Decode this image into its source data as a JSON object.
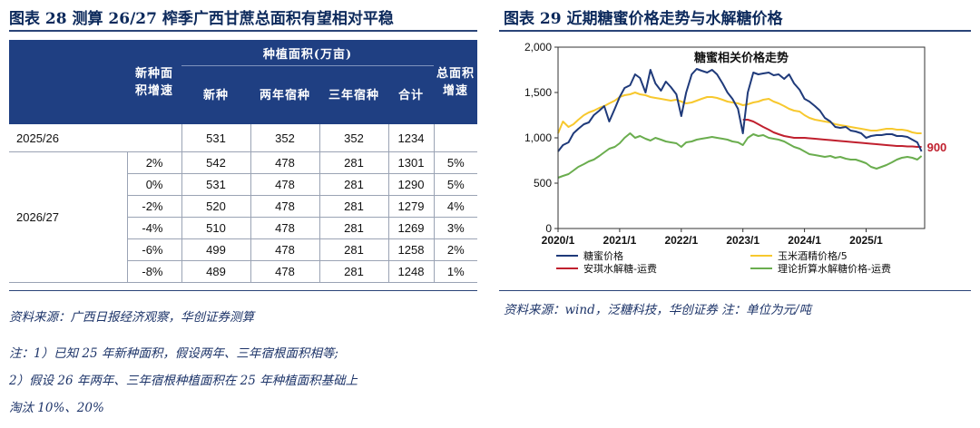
{
  "left_figure": {
    "title": "图表 28   测算 26/27 榨季广西甘蔗总面积有望相对平稳",
    "header_group": "种植面积(万亩)",
    "col_growth_lines": [
      "新种面",
      "积增速"
    ],
    "col_new": "新种",
    "col_two_year": "两年宿种",
    "col_three_year": "三年宿种",
    "col_total": "合计",
    "col_total_growth_lines": [
      "总面积",
      "增速"
    ],
    "base_row": {
      "label": "2025/26",
      "new": "531",
      "two": "352",
      "three": "352",
      "total": "1234",
      "growth": ""
    },
    "group_label": "2026/27",
    "rows": [
      {
        "g": "2%",
        "new": "542",
        "two": "478",
        "three": "281",
        "total": "1301",
        "tg": "5%"
      },
      {
        "g": "0%",
        "new": "531",
        "two": "478",
        "three": "281",
        "total": "1290",
        "tg": "5%"
      },
      {
        "g": "-2%",
        "new": "520",
        "two": "478",
        "three": "281",
        "total": "1279",
        "tg": "4%"
      },
      {
        "g": "-4%",
        "new": "510",
        "two": "478",
        "three": "281",
        "total": "1269",
        "tg": "3%"
      },
      {
        "g": "-6%",
        "new": "499",
        "two": "478",
        "three": "281",
        "total": "1258",
        "tg": "2%"
      },
      {
        "g": "-8%",
        "new": "489",
        "two": "478",
        "three": "281",
        "total": "1248",
        "tg": "1%"
      }
    ],
    "source": "资料来源：广西日报经济观察，华创证券测算",
    "notes": [
      "注：1）已知 25 年新种面积，假设两年、三年宿根面积相等;",
      "2）假设 26 年两年、三年宿根种植面积在 25 年种植面积基础上",
      "淘汰 10%、20%"
    ]
  },
  "right_figure": {
    "title": "图表 29   近期糖蜜价格走势与水解糖价格",
    "source": "资料来源：wind，泛糖科技，华创证券 注：单位为元/吨"
  },
  "chart_data": {
    "type": "line",
    "title": "糖蜜相关价格走势",
    "ylim": [
      0,
      2000
    ],
    "yticks": [
      "0",
      "500",
      "1,000",
      "1,500",
      "2,000"
    ],
    "xticks": [
      "2020/1",
      "2021/1",
      "2022/1",
      "2023/1",
      "2024/1",
      "2025/1"
    ],
    "xrange": [
      2020.0,
      2025.95
    ],
    "annotation": "900",
    "colors": {
      "molasses": "#1f3a7a",
      "corn": "#f7c82e",
      "angel": "#c0202e",
      "theory": "#6aad4e"
    },
    "series": [
      {
        "name": "糖蜜价格",
        "key": "molasses",
        "x": [
          2020.0,
          2020.08,
          2020.17,
          2020.25,
          2020.33,
          2020.42,
          2020.5,
          2020.58,
          2020.67,
          2020.75,
          2020.83,
          2020.92,
          2021.0,
          2021.08,
          2021.17,
          2021.25,
          2021.33,
          2021.42,
          2021.5,
          2021.58,
          2021.67,
          2021.75,
          2021.83,
          2021.92,
          2022.0,
          2022.08,
          2022.17,
          2022.25,
          2022.33,
          2022.42,
          2022.5,
          2022.58,
          2022.67,
          2022.75,
          2022.83,
          2022.92,
          2023.0,
          2023.08,
          2023.17,
          2023.25,
          2023.33,
          2023.42,
          2023.5,
          2023.58,
          2023.67,
          2023.75,
          2023.83,
          2023.92,
          2024.0,
          2024.08,
          2024.17,
          2024.25,
          2024.33,
          2024.42,
          2024.5,
          2024.58,
          2024.67,
          2024.75,
          2024.83,
          2024.92,
          2025.0,
          2025.08,
          2025.17,
          2025.25,
          2025.33,
          2025.42,
          2025.5,
          2025.58,
          2025.67,
          2025.75,
          2025.83,
          2025.9
        ],
        "values": [
          850,
          920,
          950,
          1050,
          1100,
          1150,
          1170,
          1250,
          1300,
          1350,
          1180,
          1320,
          1450,
          1550,
          1580,
          1700,
          1660,
          1500,
          1750,
          1600,
          1520,
          1620,
          1560,
          1480,
          1240,
          1500,
          1700,
          1760,
          1740,
          1720,
          1750,
          1700,
          1600,
          1500,
          1430,
          1320,
          1050,
          1500,
          1720,
          1700,
          1710,
          1720,
          1690,
          1700,
          1650,
          1700,
          1600,
          1530,
          1430,
          1400,
          1350,
          1300,
          1220,
          1180,
          1120,
          1110,
          1120,
          1080,
          1070,
          1050,
          1000,
          1020,
          1030,
          1030,
          1040,
          1040,
          1020,
          1020,
          1010,
          980,
          950,
          850
        ]
      },
      {
        "name": "玉米酒精价格/5",
        "key": "corn",
        "x": [
          2020.0,
          2020.08,
          2020.17,
          2020.25,
          2020.33,
          2020.42,
          2020.5,
          2020.58,
          2020.67,
          2020.75,
          2020.83,
          2020.92,
          2021.0,
          2021.08,
          2021.17,
          2021.25,
          2021.33,
          2021.42,
          2021.5,
          2021.58,
          2021.67,
          2021.75,
          2021.83,
          2021.92,
          2022.0,
          2022.08,
          2022.17,
          2022.25,
          2022.33,
          2022.42,
          2022.5,
          2022.58,
          2022.67,
          2022.75,
          2022.83,
          2022.92,
          2023.0,
          2023.08,
          2023.17,
          2023.25,
          2023.33,
          2023.42,
          2023.5,
          2023.58,
          2023.67,
          2023.75,
          2023.83,
          2023.92,
          2024.0,
          2024.08,
          2024.17,
          2024.25,
          2024.33,
          2024.42,
          2024.5,
          2024.58,
          2024.67,
          2024.75,
          2024.83,
          2024.92,
          2025.0,
          2025.08,
          2025.17,
          2025.25,
          2025.33,
          2025.42,
          2025.5,
          2025.58,
          2025.67,
          2025.75,
          2025.83,
          2025.9
        ],
        "values": [
          1050,
          1180,
          1120,
          1150,
          1200,
          1250,
          1280,
          1300,
          1330,
          1350,
          1380,
          1410,
          1450,
          1470,
          1480,
          1500,
          1480,
          1470,
          1450,
          1440,
          1430,
          1420,
          1410,
          1420,
          1400,
          1380,
          1390,
          1410,
          1430,
          1450,
          1450,
          1440,
          1420,
          1400,
          1390,
          1380,
          1360,
          1370,
          1390,
          1400,
          1420,
          1430,
          1400,
          1380,
          1350,
          1320,
          1300,
          1290,
          1250,
          1220,
          1200,
          1190,
          1180,
          1170,
          1150,
          1140,
          1130,
          1120,
          1110,
          1100,
          1090,
          1080,
          1080,
          1090,
          1100,
          1100,
          1090,
          1090,
          1080,
          1060,
          1050,
          1050
        ]
      },
      {
        "name": "安琪水解糖-运费",
        "key": "angel",
        "x": [
          2023.0,
          2023.08,
          2023.17,
          2023.25,
          2023.33,
          2023.42,
          2023.5,
          2023.58,
          2023.67,
          2023.75,
          2023.83,
          2023.92,
          2024.0,
          2024.08,
          2024.17,
          2024.25,
          2024.33,
          2024.42,
          2024.5,
          2024.58,
          2024.67,
          2024.75,
          2024.83,
          2024.92,
          2025.0,
          2025.08,
          2025.17,
          2025.25,
          2025.33,
          2025.42,
          2025.5,
          2025.58,
          2025.67,
          2025.75,
          2025.83,
          2025.9
        ],
        "values": [
          1200,
          1200,
          1180,
          1150,
          1120,
          1090,
          1060,
          1040,
          1020,
          1010,
          1000,
          1000,
          1000,
          995,
          990,
          985,
          980,
          975,
          970,
          965,
          960,
          955,
          950,
          945,
          940,
          935,
          930,
          925,
          920,
          915,
          910,
          910,
          905,
          905,
          900,
          900
        ]
      },
      {
        "name": "理论折算水解糖价格-运费",
        "key": "theory",
        "x": [
          2020.0,
          2020.08,
          2020.17,
          2020.25,
          2020.33,
          2020.42,
          2020.5,
          2020.58,
          2020.67,
          2020.75,
          2020.83,
          2020.92,
          2021.0,
          2021.08,
          2021.17,
          2021.25,
          2021.33,
          2021.42,
          2021.5,
          2021.58,
          2021.67,
          2021.75,
          2021.83,
          2021.92,
          2022.0,
          2022.08,
          2022.17,
          2022.25,
          2022.33,
          2022.42,
          2022.5,
          2022.58,
          2022.67,
          2022.75,
          2022.83,
          2022.92,
          2023.0,
          2023.08,
          2023.17,
          2023.25,
          2023.33,
          2023.42,
          2023.5,
          2023.58,
          2023.67,
          2023.75,
          2023.83,
          2023.92,
          2024.0,
          2024.08,
          2024.17,
          2024.25,
          2024.33,
          2024.42,
          2024.5,
          2024.58,
          2024.67,
          2024.75,
          2024.83,
          2024.92,
          2025.0,
          2025.08,
          2025.17,
          2025.25,
          2025.33,
          2025.42,
          2025.5,
          2025.58,
          2025.67,
          2025.75,
          2025.83,
          2025.9
        ],
        "values": [
          560,
          580,
          600,
          640,
          680,
          710,
          740,
          760,
          800,
          840,
          880,
          900,
          940,
          1000,
          1050,
          1000,
          1020,
          990,
          970,
          1000,
          980,
          960,
          950,
          940,
          900,
          950,
          960,
          980,
          990,
          1000,
          1010,
          1000,
          990,
          980,
          960,
          950,
          920,
          1000,
          1040,
          1020,
          1030,
          1000,
          990,
          980,
          960,
          930,
          900,
          880,
          850,
          820,
          810,
          800,
          790,
          800,
          780,
          790,
          770,
          760,
          760,
          740,
          720,
          680,
          660,
          680,
          700,
          730,
          760,
          780,
          790,
          780,
          760,
          800
        ]
      }
    ]
  }
}
